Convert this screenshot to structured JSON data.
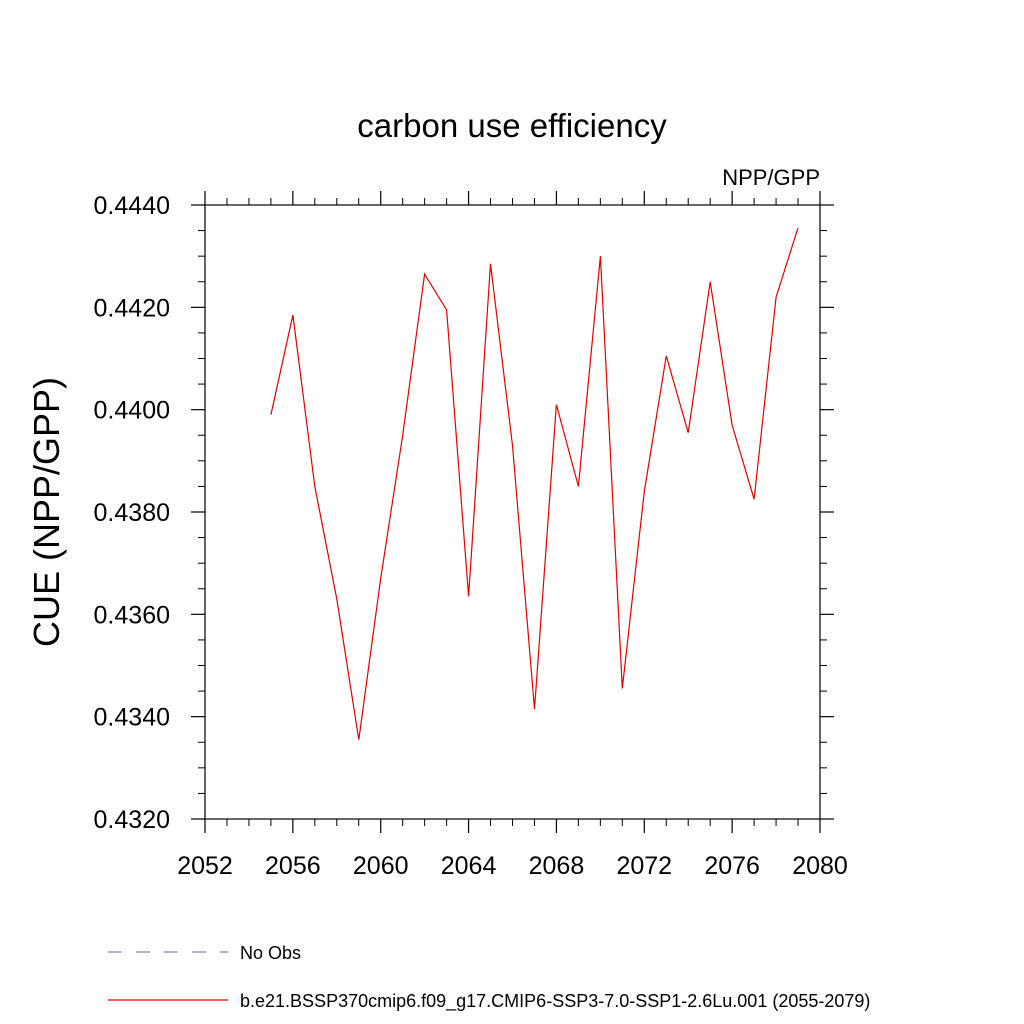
{
  "chart_data": {
    "type": "line",
    "title": "carbon use efficiency",
    "subtitle": "NPP/GPP",
    "ylabel": "CUE  (NPP/GPP)",
    "xlabel": "",
    "xlim": [
      2052,
      2080
    ],
    "ylim": [
      0.432,
      0.444
    ],
    "x_ticks": [
      2052,
      2056,
      2060,
      2064,
      2068,
      2072,
      2076,
      2080
    ],
    "x_tick_labels": [
      "2052",
      "2056",
      "2060",
      "2064",
      "2068",
      "2072",
      "2076",
      "2080"
    ],
    "y_ticks": [
      0.432,
      0.434,
      0.436,
      0.438,
      0.44,
      0.442,
      0.444
    ],
    "y_tick_labels": [
      "0.4320",
      "0.4340",
      "0.4360",
      "0.4380",
      "0.4400",
      "0.4420",
      "0.4440"
    ],
    "grid": false,
    "legend_position": "bottom",
    "series": [
      {
        "name": "No Obs",
        "color": "#8080c0",
        "dash": true,
        "x": [],
        "y": []
      },
      {
        "name": "b.e21.BSSP370cmip6.f09_g17.CMIP6-SSP3-7.0-SSP1-2.6Lu.001 (2055-2079)",
        "color": "#e00000",
        "dash": false,
        "x": [
          2055,
          2056,
          2057,
          2058,
          2059,
          2060,
          2061,
          2062,
          2063,
          2064,
          2065,
          2066,
          2067,
          2068,
          2069,
          2070,
          2071,
          2072,
          2073,
          2074,
          2075,
          2076,
          2077,
          2078,
          2079
        ],
        "y": [
          0.4399,
          0.44185,
          0.4385,
          0.4363,
          0.43355,
          0.4367,
          0.4395,
          0.44265,
          0.44195,
          0.43635,
          0.44285,
          0.4393,
          0.43415,
          0.4401,
          0.4385,
          0.443,
          0.43455,
          0.4384,
          0.44105,
          0.43955,
          0.4425,
          0.4397,
          0.43825,
          0.4422,
          0.44355
        ]
      }
    ]
  }
}
